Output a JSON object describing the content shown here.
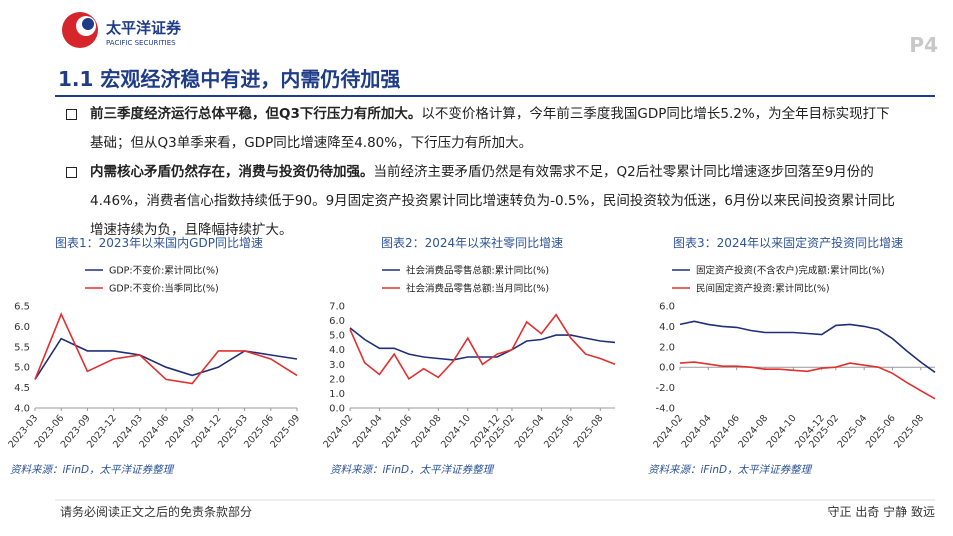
{
  "header": {
    "brand": "太平洋证券",
    "brand_en": "PACIFIC SECURITIES",
    "page": "P4",
    "title": "1.1 宏观经济稳中有进，内需仍待加强"
  },
  "bullets": [
    {
      "bold": "前三季度经济运行总体平稳，但Q3下行压力有所加大。",
      "text": "以不变价格计算，今年前三季度我国GDP同比增长5.2%，为全年目标实现打下基础；但从Q3单季来看，GDP同比增速降至4.80%，下行压力有所加大。"
    },
    {
      "bold": "内需核心矛盾仍然存在，消费与投资仍待加强。",
      "text": "当前经济主要矛盾仍然是有效需求不足，Q2后社零累计同比增速逐步回落至9月份的4.46%，消费者信心指数持续低于90。9月固定资产投资累计同比增速转负为-0.5%，民间投资较为低迷，6月份以来民间投资累计同比增速持续为负，且降幅持续扩大。"
    }
  ],
  "chart_data": [
    {
      "type": "line",
      "title": "图表1：2023年以来国内GDP同比增速",
      "source": "资料来源：iFinD，太平洋证券整理",
      "categories": [
        "2023-03",
        "2023-06",
        "2023-09",
        "2023-12",
        "2024-03",
        "2024-06",
        "2024-09",
        "2024-12",
        "2025-03",
        "2025-06",
        "2025-09"
      ],
      "series": [
        {
          "name": "GDP:不变价:累计同比(%)",
          "color": "#1f2f7a",
          "values": [
            4.7,
            5.7,
            5.4,
            5.4,
            5.3,
            5.0,
            4.8,
            5.0,
            5.4,
            5.3,
            5.2
          ]
        },
        {
          "name": "GDP:不变价:当季同比(%)",
          "color": "#e03030",
          "values": [
            4.7,
            6.3,
            4.9,
            5.2,
            5.3,
            4.7,
            4.6,
            5.4,
            5.4,
            5.2,
            4.8
          ]
        }
      ],
      "ylim": [
        4.0,
        6.5
      ],
      "yticks": [
        {
          "value": 4,
          "label": "4.0"
        },
        4.5,
        {
          "value": 5,
          "label": "5.0"
        },
        5.5,
        {
          "value": 6,
          "label": "6.0"
        },
        6.5
      ]
    },
    {
      "type": "line",
      "title": "图表2：2024年以来社零同比增速",
      "source": "资料来源：iFinD，太平洋证券整理",
      "categories": [
        "2024-02",
        null,
        "2024-04",
        null,
        "2024-06",
        null,
        "2024-08",
        null,
        "2024-10",
        null,
        "2024-12",
        "2025-02",
        null,
        "2025-04",
        null,
        "2025-06",
        null,
        "2025-08",
        null
      ],
      "series": [
        {
          "name": "社会消费品零售总额:累计同比(%)",
          "color": "#1f2f7a",
          "values": [
            5.5,
            4.7,
            4.1,
            4.1,
            3.7,
            3.5,
            3.4,
            3.3,
            3.5,
            3.5,
            3.5,
            4.0,
            4.6,
            4.7,
            5.0,
            5.0,
            4.8,
            4.6,
            4.5
          ]
        },
        {
          "name": "社会消费品零售总额:当月同比(%)",
          "color": "#e03030",
          "values": [
            5.4,
            3.1,
            2.3,
            3.7,
            2.0,
            2.7,
            2.1,
            3.2,
            4.8,
            3.0,
            3.7,
            4.0,
            5.9,
            5.1,
            6.4,
            4.8,
            3.7,
            3.4,
            3.0
          ]
        }
      ],
      "ylim": [
        0,
        7
      ],
      "yticks": [
        {
          "value": 0,
          "label": "0.0"
        },
        {
          "value": 1,
          "label": "1.0"
        },
        {
          "value": 2,
          "label": "2.0"
        },
        {
          "value": 3,
          "label": "3.0"
        },
        {
          "value": 4,
          "label": "4.0"
        },
        {
          "value": 5,
          "label": "5.0"
        },
        {
          "value": 6,
          "label": "6.0"
        },
        {
          "value": 7,
          "label": "7.0"
        }
      ]
    },
    {
      "type": "line",
      "title": "图表3：2024年以来固定资产投资同比增速",
      "source": "资料来源：iFinD，太平洋证券整理",
      "categories": [
        "2024-02",
        null,
        "2024-04",
        null,
        "2024-06",
        null,
        "2024-08",
        null,
        "2024-10",
        null,
        "2024-12",
        "2025-02",
        null,
        "2025-04",
        null,
        "2025-06",
        null,
        "2025-08",
        null
      ],
      "series": [
        {
          "name": "固定资产投资(不含农户)完成额:累计同比(%)",
          "color": "#1f2f7a",
          "values": [
            4.2,
            4.5,
            4.2,
            4.0,
            3.9,
            3.6,
            3.4,
            3.4,
            3.4,
            3.3,
            3.2,
            4.1,
            4.2,
            4.0,
            3.7,
            2.8,
            1.6,
            0.5,
            -0.5
          ]
        },
        {
          "name": "民间固定资产投资:累计同比(%)",
          "color": "#e03030",
          "values": [
            0.4,
            0.5,
            0.3,
            0.1,
            0.1,
            0.0,
            -0.2,
            -0.2,
            -0.3,
            -0.4,
            -0.1,
            0.0,
            0.4,
            0.2,
            0.0,
            -0.6,
            -1.5,
            -2.3,
            -3.1
          ]
        }
      ],
      "ylim": [
        -4,
        6
      ],
      "yticks": [
        {
          "value": -4,
          "label": "-4.0"
        },
        {
          "value": -2,
          "label": "-2.0"
        },
        {
          "value": 0,
          "label": "0.0"
        },
        {
          "value": 2,
          "label": "2.0"
        },
        {
          "value": 4,
          "label": "4.0"
        },
        {
          "value": 6,
          "label": "6.0"
        }
      ]
    }
  ],
  "footer": {
    "left": "请务必阅读正文之后的免责条款部分",
    "right": "守正 出奇 宁静 致远"
  }
}
